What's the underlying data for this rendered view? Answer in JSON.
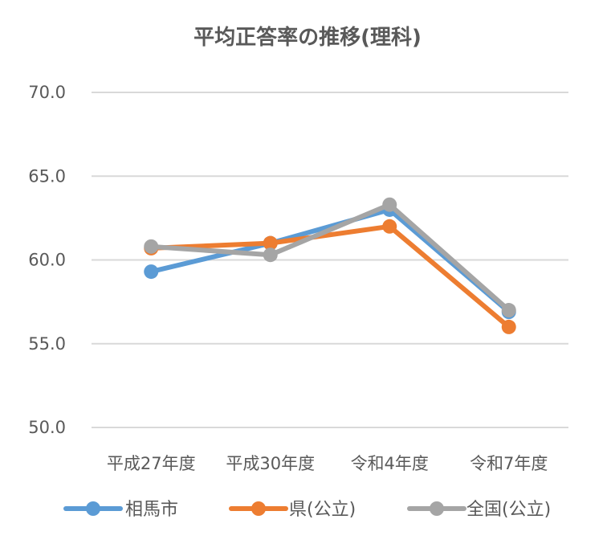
{
  "chart_data": {
    "type": "line",
    "title": "平均正答率の推移(理科)",
    "categories": [
      "平成27年度",
      "平成30年度",
      "令和4年度",
      "令和7年度"
    ],
    "ylim": [
      50.0,
      70.0
    ],
    "yticks": [
      "70.0",
      "65.0",
      "60.0",
      "55.0",
      "50.0"
    ],
    "grid": true,
    "legend_position": "bottom",
    "series": [
      {
        "name": "相馬市",
        "values": [
          59.3,
          61.0,
          63.0,
          56.9
        ],
        "color": "#5b9bd5"
      },
      {
        "name": "県(公立)",
        "values": [
          60.7,
          61.0,
          62.0,
          56.0
        ],
        "color": "#ed7d31"
      },
      {
        "name": "全国(公立)",
        "values": [
          60.8,
          60.3,
          63.3,
          57.0
        ],
        "color": "#a5a5a5"
      }
    ]
  }
}
